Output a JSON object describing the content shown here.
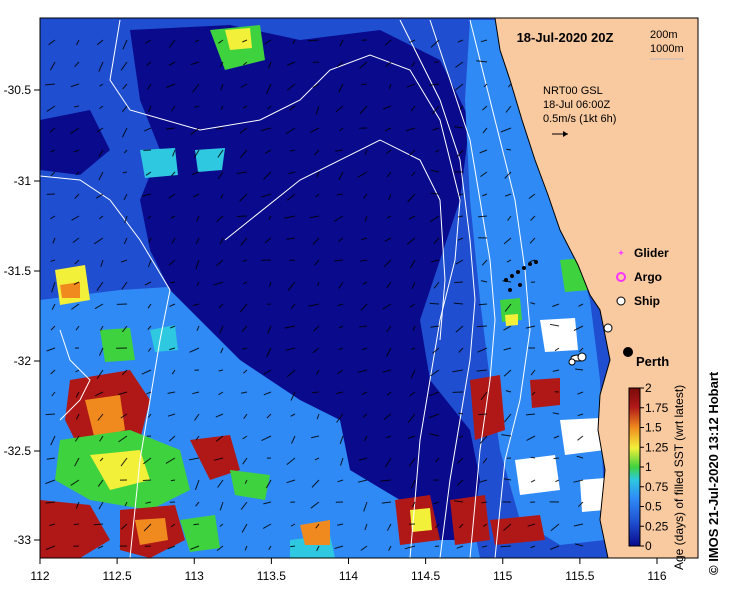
{
  "map": {
    "title": "18-Jul-2020 20Z",
    "contour_legend": [
      "200m",
      "1000m"
    ],
    "current_label_lines": [
      "NRT00 GSL",
      "18-Jul 06:00Z",
      "0.5m/s (1kt 6h)"
    ],
    "legend": {
      "glider_label": "Glider",
      "argo_label": "Argo",
      "ship_label": "Ship"
    },
    "city_label": "Perth",
    "credit": "© IMOS 21-Jul-2020 13:12 Hobart",
    "x_ticks": [
      "112",
      "112.5",
      "113",
      "113.5",
      "114",
      "114.5",
      "115",
      "115.5",
      "116"
    ],
    "y_ticks": [
      "-30.5",
      "-31",
      "-31.5",
      "-32",
      "-32.5",
      "-33"
    ],
    "colorbar": {
      "label": "Age (days) of filled SST (wrt latest)",
      "ticks": [
        "2",
        "1.75",
        "1.5",
        "1.25",
        "1",
        "0.75",
        "0.5",
        "0.25",
        "0"
      ]
    },
    "colors": {
      "land": "#f9c9a0",
      "deep_navy": "#0a0a8c",
      "mid_blue": "#1f4fd0",
      "light_blue": "#2f8af5",
      "cyan": "#2ec8e0",
      "green": "#3fd23f",
      "yellow": "#f3f03a",
      "orange": "#f08a1f",
      "red": "#b01818",
      "dark_red": "#7a0a0a",
      "glider_marker": "#ff44ff",
      "argo_marker": "#ff33ff"
    }
  }
}
